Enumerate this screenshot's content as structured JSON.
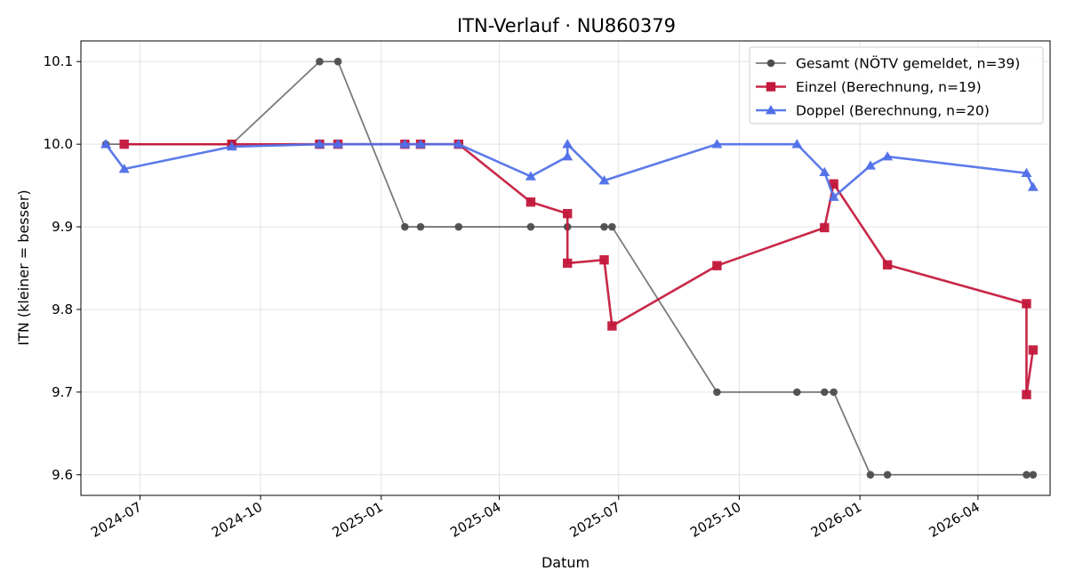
{
  "chart_data": {
    "type": "line",
    "title": "ITN-Verlauf · NU860379",
    "xlabel": "Datum",
    "ylabel": "ITN  (kleiner = besser)",
    "xlim": [
      "2024-05-17",
      "2026-05-26"
    ],
    "ylim": [
      9.575,
      10.125
    ],
    "grid": true,
    "legend": "top-right",
    "x_ticks": [
      "2024-07",
      "2024-10",
      "2025-01",
      "2025-04",
      "2025-07",
      "2025-10",
      "2026-01",
      "2026-04"
    ],
    "y_ticks": [
      "9.6",
      "9.7",
      "9.8",
      "9.9",
      "10.0",
      "10.1"
    ],
    "series": [
      {
        "name": "Gesamt (NÖTV gemeldet, n=39)",
        "color": "#4d4d4d",
        "marker": "circle",
        "points": [
          [
            "2024-06-05",
            10.0
          ],
          [
            "2024-09-09",
            10.0
          ],
          [
            "2024-11-15",
            10.1
          ],
          [
            "2024-11-29",
            10.1
          ],
          [
            "2025-01-19",
            9.9
          ],
          [
            "2025-01-31",
            9.9
          ],
          [
            "2025-03-01",
            9.9
          ],
          [
            "2025-04-25",
            9.9
          ],
          [
            "2025-05-23",
            9.9
          ],
          [
            "2025-06-20",
            9.9
          ],
          [
            "2025-06-26",
            9.9
          ],
          [
            "2025-09-14",
            9.7
          ],
          [
            "2025-11-14",
            9.7
          ],
          [
            "2025-12-05",
            9.7
          ],
          [
            "2025-12-12",
            9.7
          ],
          [
            "2026-01-09",
            9.6
          ],
          [
            "2026-01-22",
            9.6
          ],
          [
            "2026-05-08",
            9.6
          ],
          [
            "2026-05-13",
            9.6
          ]
        ]
      },
      {
        "name": "Einzel (Berechnung, n=19)",
        "color": "#c3163a",
        "marker": "square",
        "points": [
          [
            "2024-06-19",
            10.0
          ],
          [
            "2024-09-09",
            10.0
          ],
          [
            "2024-11-15",
            10.0
          ],
          [
            "2024-11-29",
            10.0
          ],
          [
            "2025-01-19",
            10.0
          ],
          [
            "2025-01-31",
            10.0
          ],
          [
            "2025-03-01",
            10.0
          ],
          [
            "2025-04-25",
            9.93
          ],
          [
            "2025-05-23",
            9.916
          ],
          [
            "2025-05-23",
            9.856
          ],
          [
            "2025-06-20",
            9.86
          ],
          [
            "2025-06-26",
            9.78
          ],
          [
            "2025-09-14",
            9.853
          ],
          [
            "2025-12-05",
            9.899
          ],
          [
            "2025-12-12",
            9.952
          ],
          [
            "2026-01-22",
            9.854
          ],
          [
            "2026-05-08",
            9.807
          ],
          [
            "2026-05-08",
            9.697
          ],
          [
            "2026-05-13",
            9.751
          ]
        ]
      },
      {
        "name": "Doppel (Berechnung, n=20)",
        "color": "#4f6fe8",
        "marker": "triangle",
        "points": [
          [
            "2024-06-05",
            10.0
          ],
          [
            "2024-06-19",
            9.97
          ],
          [
            "2024-09-09",
            9.997
          ],
          [
            "2024-11-15",
            10.0
          ],
          [
            "2024-11-29",
            10.0
          ],
          [
            "2025-01-19",
            10.0
          ],
          [
            "2025-01-31",
            10.0
          ],
          [
            "2025-03-01",
            10.0
          ],
          [
            "2025-04-25",
            9.961
          ],
          [
            "2025-05-23",
            9.985
          ],
          [
            "2025-05-23",
            10.0
          ],
          [
            "2025-06-20",
            9.956
          ],
          [
            "2025-09-14",
            10.0
          ],
          [
            "2025-11-14",
            10.0
          ],
          [
            "2025-12-05",
            9.966
          ],
          [
            "2025-12-12",
            9.936
          ],
          [
            "2026-01-09",
            9.974
          ],
          [
            "2026-01-22",
            9.985
          ],
          [
            "2026-05-08",
            9.965
          ],
          [
            "2026-05-13",
            9.948
          ]
        ]
      }
    ]
  }
}
